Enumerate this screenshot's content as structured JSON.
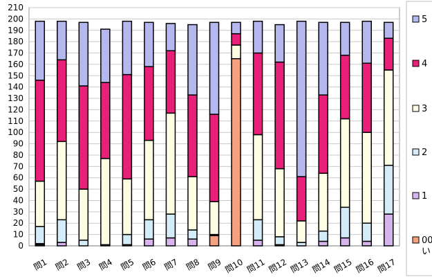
{
  "chart_data": {
    "type": "bar",
    "stacked": true,
    "categories": [
      "問1",
      "問2",
      "問3",
      "問4",
      "問5",
      "問6",
      "問7",
      "問8",
      "問9",
      "問10",
      "問11",
      "問12",
      "問13",
      "問14",
      "問15",
      "問16",
      "問17"
    ],
    "series": [
      {
        "name": "00",
        "name_line2": "い",
        "color": "#f4a081",
        "values": [
          1,
          0,
          0,
          0,
          0,
          0,
          0,
          0,
          9,
          165,
          0,
          0,
          0,
          0,
          0,
          0,
          0
        ]
      },
      {
        "name": "1",
        "color": "#d8b4ee",
        "values": [
          1,
          3,
          0,
          1,
          1,
          6,
          7,
          6,
          1,
          0,
          5,
          1,
          0,
          4,
          7,
          4,
          28
        ]
      },
      {
        "name": "2",
        "color": "#d4ecf8",
        "values": [
          15,
          20,
          5,
          0,
          9,
          17,
          21,
          8,
          0,
          0,
          18,
          7,
          3,
          9,
          27,
          16,
          43
        ]
      },
      {
        "name": "3",
        "color": "#fdfde4",
        "values": [
          40,
          69,
          45,
          76,
          49,
          70,
          89,
          47,
          29,
          12,
          75,
          60,
          19,
          51,
          78,
          80,
          84
        ]
      },
      {
        "name": "4",
        "color": "#e8207a",
        "values": [
          89,
          72,
          91,
          67,
          92,
          65,
          55,
          72,
          77,
          10,
          72,
          94,
          39,
          69,
          56,
          61,
          28
        ]
      },
      {
        "name": "5",
        "color": "#b4b8ee",
        "values": [
          52,
          34,
          56,
          47,
          47,
          39,
          24,
          62,
          81,
          10,
          28,
          33,
          137,
          64,
          29,
          37,
          14
        ]
      }
    ],
    "yticks": [
      0,
      10,
      20,
      30,
      40,
      50,
      60,
      70,
      80,
      90,
      100,
      110,
      120,
      130,
      140,
      150,
      160,
      170,
      180,
      190,
      200,
      210
    ],
    "ylim": [
      0,
      210
    ],
    "grid": true,
    "legend": "right"
  }
}
